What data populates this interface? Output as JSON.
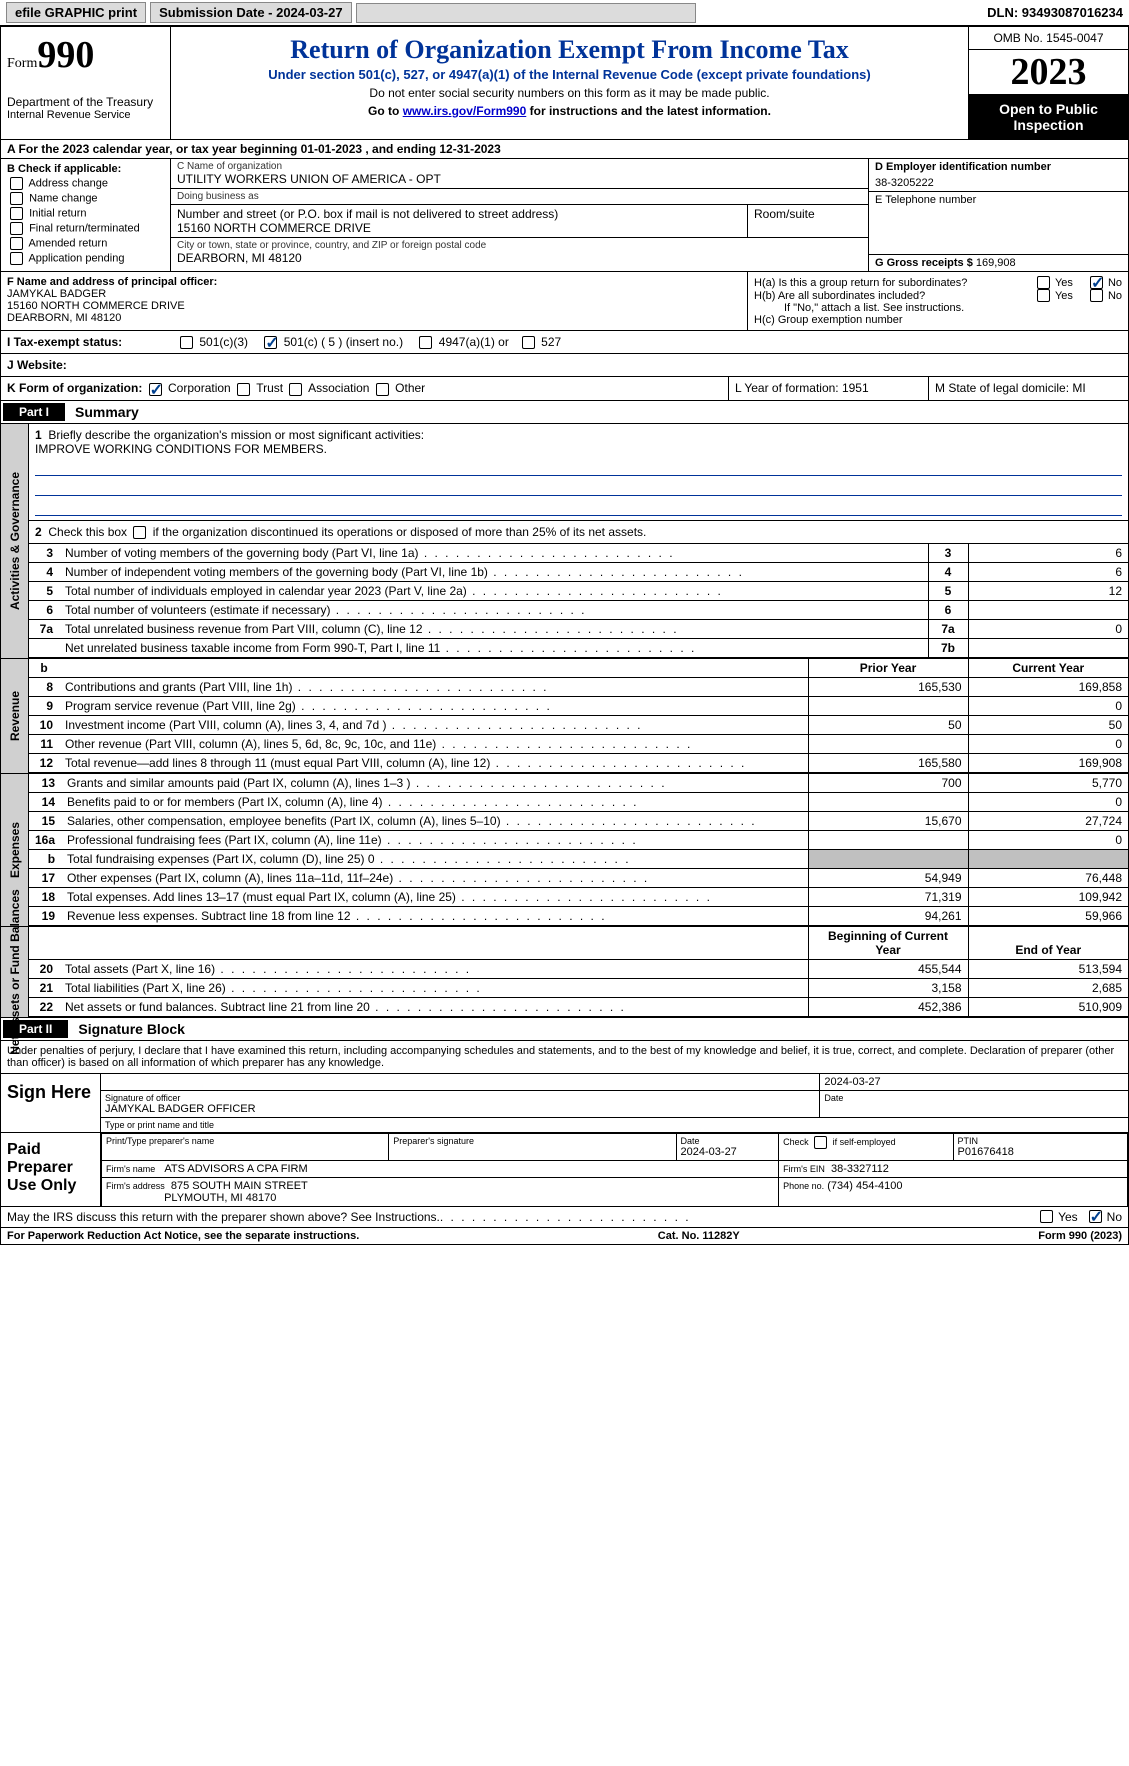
{
  "topbar": {
    "efile": "efile GRAPHIC print",
    "submission": "Submission Date - 2024-03-27",
    "dln": "DLN: 93493087016234"
  },
  "header": {
    "form_word": "Form",
    "form_num": "990",
    "dept": "Department of the Treasury",
    "irs": "Internal Revenue Service",
    "title": "Return of Organization Exempt From Income Tax",
    "sub1": "Under section 501(c), 527, or 4947(a)(1) of the Internal Revenue Code (except private foundations)",
    "sub2": "Do not enter social security numbers on this form as it may be made public.",
    "sub3_pre": "Go to ",
    "sub3_link": "www.irs.gov/Form990",
    "sub3_post": " for instructions and the latest information.",
    "omb": "OMB No. 1545-0047",
    "year": "2023",
    "open": "Open to Public Inspection"
  },
  "row_a": "A For the 2023 calendar year, or tax year beginning 01-01-2023   , and ending 12-31-2023",
  "col_b": {
    "label": "B Check if applicable:",
    "opts": [
      "Address change",
      "Name change",
      "Initial return",
      "Final return/terminated",
      "Amended return",
      "Application pending"
    ]
  },
  "col_c": {
    "name_lbl": "C Name of organization",
    "name": "UTILITY WORKERS UNION OF AMERICA - OPT",
    "dba_lbl": "Doing business as",
    "dba": "",
    "street_lbl": "Number and street (or P.O. box if mail is not delivered to street address)",
    "street": "15160 NORTH COMMERCE DRIVE",
    "room_lbl": "Room/suite",
    "city_lbl": "City or town, state or province, country, and ZIP or foreign postal code",
    "city": "DEARBORN, MI  48120"
  },
  "col_d": {
    "ein_lbl": "D Employer identification number",
    "ein": "38-3205222",
    "tel_lbl": "E Telephone number",
    "tel": "",
    "gross_lbl": "G Gross receipts $",
    "gross": "169,908"
  },
  "row_f": {
    "f_lbl": "F  Name and address of principal officer:",
    "f_name": "JAMYKAL BADGER",
    "f_addr1": "15160 NORTH COMMERCE DRIVE",
    "f_addr2": "DEARBORN, MI  48120",
    "ha": "H(a)  Is this a group return for subordinates?",
    "hb": "H(b)  Are all subordinates included?",
    "hb_note": "If \"No,\" attach a list. See instructions.",
    "hc": "H(c)  Group exemption number"
  },
  "tax": {
    "label_i": "I  Tax-exempt status:",
    "c3": "501(c)(3)",
    "c": "501(c) ( 5 ) (insert no.)",
    "a4947": "4947(a)(1) or",
    "s527": "527",
    "label_j": "J  Website:"
  },
  "row_k": {
    "label": "K Form of organization:",
    "opts": [
      "Corporation",
      "Trust",
      "Association",
      "Other"
    ],
    "l": "L Year of formation: 1951",
    "m": "M State of legal domicile: MI"
  },
  "part1": {
    "tag": "Part I",
    "title": "Summary",
    "side_gov": "Activities & Governance",
    "side_rev": "Revenue",
    "side_exp": "Expenses",
    "side_net": "Net Assets or Fund Balances",
    "q1": "Briefly describe the organization's mission or most significant activities:",
    "q1_ans": "IMPROVE WORKING CONDITIONS FOR MEMBERS.",
    "q2": "Check this box        if the organization discontinued its operations or disposed of more than 25% of its net assets.",
    "rows_gov": [
      {
        "n": "3",
        "d": "Number of voting members of the governing body (Part VI, line 1a)",
        "i": "3",
        "v": "6"
      },
      {
        "n": "4",
        "d": "Number of independent voting members of the governing body (Part VI, line 1b)",
        "i": "4",
        "v": "6"
      },
      {
        "n": "5",
        "d": "Total number of individuals employed in calendar year 2023 (Part V, line 2a)",
        "i": "5",
        "v": "12"
      },
      {
        "n": "6",
        "d": "Total number of volunteers (estimate if necessary)",
        "i": "6",
        "v": ""
      },
      {
        "n": "7a",
        "d": "Total unrelated business revenue from Part VIII, column (C), line 12",
        "i": "7a",
        "v": "0"
      },
      {
        "n": "",
        "d": "Net unrelated business taxable income from Form 990-T, Part I, line 11",
        "i": "7b",
        "v": ""
      }
    ],
    "hdr_b": "b",
    "hdr_prior": "Prior Year",
    "hdr_curr": "Current Year",
    "rows_rev": [
      {
        "n": "8",
        "d": "Contributions and grants (Part VIII, line 1h)",
        "p": "165,530",
        "c": "169,858"
      },
      {
        "n": "9",
        "d": "Program service revenue (Part VIII, line 2g)",
        "p": "",
        "c": "0"
      },
      {
        "n": "10",
        "d": "Investment income (Part VIII, column (A), lines 3, 4, and 7d )",
        "p": "50",
        "c": "50"
      },
      {
        "n": "11",
        "d": "Other revenue (Part VIII, column (A), lines 5, 6d, 8c, 9c, 10c, and 11e)",
        "p": "",
        "c": "0"
      },
      {
        "n": "12",
        "d": "Total revenue—add lines 8 through 11 (must equal Part VIII, column (A), line 12)",
        "p": "165,580",
        "c": "169,908"
      }
    ],
    "rows_exp": [
      {
        "n": "13",
        "d": "Grants and similar amounts paid (Part IX, column (A), lines 1–3 )",
        "p": "700",
        "c": "5,770"
      },
      {
        "n": "14",
        "d": "Benefits paid to or for members (Part IX, column (A), line 4)",
        "p": "",
        "c": "0"
      },
      {
        "n": "15",
        "d": "Salaries, other compensation, employee benefits (Part IX, column (A), lines 5–10)",
        "p": "15,670",
        "c": "27,724"
      },
      {
        "n": "16a",
        "d": "Professional fundraising fees (Part IX, column (A), line 11e)",
        "p": "",
        "c": "0"
      },
      {
        "n": "b",
        "d": "Total fundraising expenses (Part IX, column (D), line 25) 0",
        "p": "grey",
        "c": "grey"
      },
      {
        "n": "17",
        "d": "Other expenses (Part IX, column (A), lines 11a–11d, 11f–24e)",
        "p": "54,949",
        "c": "76,448"
      },
      {
        "n": "18",
        "d": "Total expenses. Add lines 13–17 (must equal Part IX, column (A), line 25)",
        "p": "71,319",
        "c": "109,942"
      },
      {
        "n": "19",
        "d": "Revenue less expenses. Subtract line 18 from line 12",
        "p": "94,261",
        "c": "59,966"
      }
    ],
    "hdr_beg": "Beginning of Current Year",
    "hdr_end": "End of Year",
    "rows_net": [
      {
        "n": "20",
        "d": "Total assets (Part X, line 16)",
        "p": "455,544",
        "c": "513,594"
      },
      {
        "n": "21",
        "d": "Total liabilities (Part X, line 26)",
        "p": "3,158",
        "c": "2,685"
      },
      {
        "n": "22",
        "d": "Net assets or fund balances. Subtract line 21 from line 20",
        "p": "452,386",
        "c": "510,909"
      }
    ]
  },
  "part2": {
    "tag": "Part II",
    "title": "Signature Block",
    "decl": "Under penalties of perjury, I declare that I have examined this return, including accompanying schedules and statements, and to the best of my knowledge and belief, it is true, correct, and complete. Declaration of preparer (other than officer) is based on all information of which preparer has any knowledge.",
    "sign_here": "Sign Here",
    "sig_date": "2024-03-27",
    "sig_lbl": "Signature of officer",
    "sig_name": "JAMYKAL BADGER  OFFICER",
    "sig_type_lbl": "Type or print name and title",
    "date_lbl": "Date",
    "paid": "Paid Preparer Use Only",
    "prep_name_lbl": "Print/Type preparer's name",
    "prep_sig_lbl": "Preparer's signature",
    "prep_date_lbl": "Date",
    "prep_date": "2024-03-27",
    "prep_self": "Check         if self-employed",
    "ptin_lbl": "PTIN",
    "ptin": "P01676418",
    "firm_name_lbl": "Firm's name",
    "firm_name": "ATS ADVISORS A CPA FIRM",
    "firm_ein_lbl": "Firm's EIN",
    "firm_ein": "38-3327112",
    "firm_addr_lbl": "Firm's address",
    "firm_addr1": "875 SOUTH MAIN STREET",
    "firm_addr2": "PLYMOUTH, MI  48170",
    "phone_lbl": "Phone no.",
    "phone": "(734) 454-4100",
    "discuss": "May the IRS discuss this return with the preparer shown above? See Instructions."
  },
  "footer": {
    "pra": "For Paperwork Reduction Act Notice, see the separate instructions.",
    "cat": "Cat. No. 11282Y",
    "form": "Form 990 (2023)"
  },
  "yn": {
    "yes": "Yes",
    "no": "No"
  }
}
